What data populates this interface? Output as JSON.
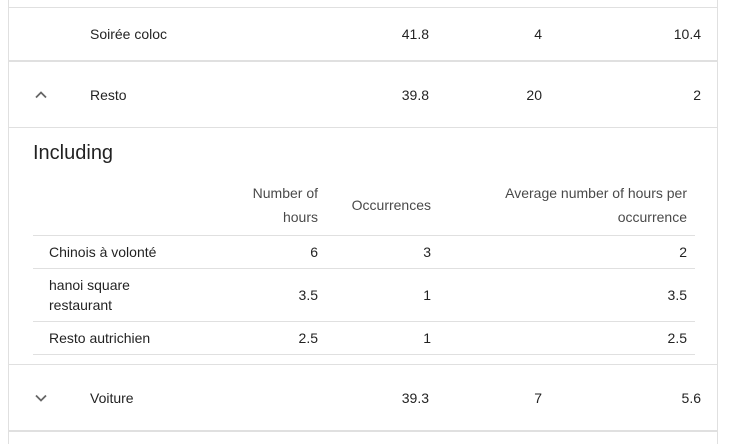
{
  "rows": [
    {
      "name": "Soirée coloc",
      "hours": "41.8",
      "occurrences": "4",
      "avg": "10.4"
    },
    {
      "name": "Resto",
      "hours": "39.8",
      "occurrences": "20",
      "avg": "2"
    },
    {
      "name": "Voiture",
      "hours": "39.3",
      "occurrences": "7",
      "avg": "5.6"
    }
  ],
  "including": {
    "title": "Including",
    "headers": {
      "hours_line1": "Number of",
      "hours_line2": "hours",
      "occurrences": "Occurrences",
      "avg_line1": "Average number of hours per",
      "avg_line2": "occurrence"
    },
    "rows": [
      {
        "name": "Chinois à volonté",
        "hours": "6",
        "occurrences": "3",
        "avg": "2"
      },
      {
        "name_line1": "hanoi square",
        "name_line2": "restaurant",
        "hours": "3.5",
        "occurrences": "1",
        "avg": "3.5"
      },
      {
        "name": "Resto autrichien",
        "hours": "2.5",
        "occurrences": "1",
        "avg": "2.5"
      }
    ]
  },
  "icons": {
    "expanded": "chevron-up-icon",
    "collapsed": "chevron-down-icon"
  }
}
